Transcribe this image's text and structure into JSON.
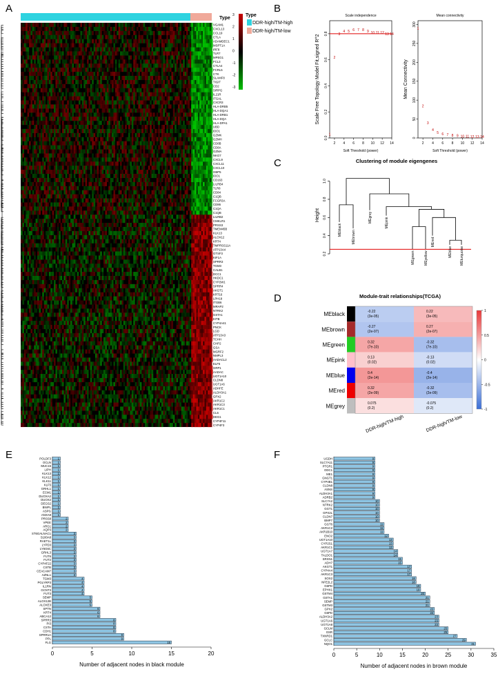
{
  "panels": {
    "a": "A",
    "b": "B",
    "c": "C",
    "d": "D",
    "e": "E",
    "f": "F"
  },
  "colors": {
    "type_high": "#2fd3e0",
    "type_low": "#f0a99a",
    "heat_red": "#c80000",
    "heat_green": "#00c000",
    "bar_fill": "#8ec5e3",
    "trait_pos": "#e8393a",
    "trait_neg": "#3b6fd6"
  },
  "chart_data": [
    {
      "type": "heatmap",
      "panel": "A",
      "legend_type_title": "Type",
      "legend_type_entries": [
        "DDR-high/TM-high",
        "DDR-high/TM-low"
      ],
      "scale_title": "Type",
      "scale_ticks": [
        "3",
        "2",
        "1",
        "0",
        "-1",
        "-2",
        "-3"
      ],
      "genes": [
        "VGAM1",
        "CXCL13",
        "CCL19",
        "CTLA",
        "ADAMDEC1",
        "MSPT1A",
        "IRF8",
        "TLR7",
        "MPEG1",
        "FCL3",
        "CTLA4",
        "FCRL5",
        "CTK",
        "SLAMF8",
        "TIGIT",
        "CD2",
        "SIRPG",
        "IL21R",
        "ITGAL",
        "CXCR3",
        "HLA-DRB5",
        "HLA-DQA1",
        "HLA-DRB1",
        "HLA-DQA",
        "HLA-DPA1",
        "UBD",
        "IDO1",
        "GZMK",
        "GZMH",
        "CD8B",
        "CD8A",
        "GZMA",
        "NKG7",
        "CXCL9",
        "CXCL11",
        "CXCL10",
        "GBP5",
        "IDO1",
        "CD163",
        "LILRB4",
        "TLR8",
        "CD84",
        "C1QB",
        "FCGR3A",
        "CD86",
        "C1QA",
        "C1QB",
        "LILRB2",
        "CMKLR1",
        "PRSS3",
        "TMEM45B",
        "KLK13",
        "ALOX12",
        "KRT4",
        "TMPRSS11A",
        "ATP13A4",
        "GTSF3",
        "KIF1A",
        "SPRR3",
        "TGM3",
        "CALB1",
        "DCC1",
        "HKDC1",
        "CYP2W1",
        "SPRR4",
        "AKGT1",
        "KRT16",
        "LPH18",
        "ITGB6",
        "MRAP2",
        "NTRK2",
        "GSTA1",
        "KITB",
        "CYP4A41",
        "PNCK",
        "LGD",
        "ATP13A3",
        "TCHH",
        "CHP2",
        "GSA",
        "MGRF2",
        "NMPL3",
        "AADACL2",
        "ELF5",
        "GRP1",
        "AADAC",
        "UGT1A10",
        "CLDN8",
        "UGT1A6",
        "ADHFE",
        "ALDH3A1",
        "GPX2",
        "AKR1C2",
        "AKR1C3",
        "AKR1C1",
        "CL6",
        "DEG1",
        "CYP4F11",
        "CYP4F3"
      ]
    },
    {
      "type": "scatter",
      "panel": "B",
      "title": "Scale independence",
      "xlabel": "Soft Threshold (power)",
      "ylabel": "Scale Free Topology Model Fit,signed R^2",
      "xlim": [
        1,
        14
      ],
      "ylim": [
        0,
        0.9
      ],
      "xticks": [
        "2",
        "4",
        "6",
        "8",
        "10",
        "12",
        "14"
      ],
      "yticks": [
        "0.0",
        "0.2",
        "0.4",
        "0.6",
        "0.8"
      ],
      "x": [
        1,
        2,
        3,
        4,
        5,
        6,
        7,
        8,
        9,
        10,
        11,
        12,
        13,
        14
      ],
      "y": [
        0.03,
        0.62,
        0.8,
        0.82,
        0.82,
        0.83,
        0.83,
        0.83,
        0.82,
        0.81,
        0.81,
        0.81,
        0.8,
        0.8
      ],
      "labels": [
        "1",
        "2",
        "3",
        "4",
        "5",
        "6",
        "7",
        "8",
        "9",
        "10",
        "11",
        "12",
        "13",
        "14"
      ],
      "threshold": 0.8
    },
    {
      "type": "scatter",
      "panel": "B",
      "title": "Mean connectivity",
      "xlabel": "Soft Threshold (power)",
      "ylabel": "Mean Connectivity",
      "xlim": [
        1,
        14
      ],
      "ylim": [
        0,
        310
      ],
      "xticks": [
        "2",
        "4",
        "6",
        "8",
        "10",
        "12",
        "14"
      ],
      "yticks": [
        "0",
        "50",
        "100",
        "150",
        "200",
        "250",
        "300"
      ],
      "x": [
        1,
        2,
        3,
        4,
        5,
        6,
        7,
        8,
        9,
        10,
        11,
        12,
        13,
        14
      ],
      "y": [
        290,
        85,
        40,
        22,
        15,
        11,
        9,
        7,
        6,
        5,
        5,
        4,
        4,
        4
      ],
      "labels": [
        "1",
        "2",
        "3",
        "4",
        "5",
        "6",
        "7",
        "8",
        "9",
        "10",
        "11",
        "12",
        "13",
        "14"
      ]
    },
    {
      "type": "dendrogram",
      "panel": "C",
      "title": "Clustering of module eigengenes",
      "ylabel": "Height",
      "yticks": [
        "0.2",
        "0.4",
        "0.6",
        "0.8",
        "1.0"
      ],
      "ylim": [
        0.2,
        1.05
      ],
      "leaves": [
        "MEblack",
        "MEbrown",
        "MEgrey",
        "MEpink",
        "MEgreen",
        "MEyellow",
        "MEred",
        "MEblue",
        "MEturquoise"
      ],
      "cut_height": 0.25
    },
    {
      "type": "heatmap",
      "panel": "D",
      "title": "Module-trait relationships(TCGA)",
      "rows": [
        "MEblack",
        "MEbrown",
        "MEgreen",
        "MEpink",
        "MEblue",
        "MEred",
        "MEgrey"
      ],
      "row_colors": [
        "#000000",
        "#a52a2a",
        "#22cc22",
        "#ffc0cb",
        "#0000ee",
        "#ee0000",
        "#bebebe"
      ],
      "columns": [
        "DDR-high/TM-high",
        "DDR-high/TM-low"
      ],
      "values": [
        [
          -0.22,
          0.22
        ],
        [
          -0.27,
          0.27
        ],
        [
          0.32,
          -0.32
        ],
        [
          0.13,
          -0.13
        ],
        [
          0.4,
          -0.4
        ],
        [
          0.32,
          -0.32
        ],
        [
          0.075,
          -0.075
        ]
      ],
      "cell_text": [
        [
          "-0.22",
          "(3e-05)",
          "0.22",
          "(3e-05)"
        ],
        [
          "-0.27",
          "(2e-07)",
          "0.27",
          "(2e-07)"
        ],
        [
          "0.32",
          "(7e-10)",
          "-0.32",
          "(7e-10)"
        ],
        [
          "0.13",
          "(0.02)",
          "-0.13",
          "(0.02)"
        ],
        [
          "0.4",
          "(2e-14)",
          "-0.4",
          "(2e-14)"
        ],
        [
          "0.32",
          "(2e-09)",
          "-0.32",
          "(2e-09)"
        ],
        [
          "0.075",
          "(0.2)",
          "-0.075",
          "(0.2)"
        ]
      ],
      "scale_ticks": [
        "1",
        "0.5",
        "0",
        "-0.5",
        "-1"
      ]
    },
    {
      "type": "bar",
      "panel": "E",
      "orientation": "horizontal",
      "xlabel": "Number of adjacent nodes in black module",
      "xlim": [
        0,
        20
      ],
      "xticks": [
        "0",
        "5",
        "10",
        "15",
        "20"
      ],
      "categories": [
        "POLDF3",
        "OCLN",
        "MUC15",
        "LIPH",
        "KLK13",
        "KLK12",
        "KLK11",
        "KLF5",
        "GRHL1",
        "ECM1",
        "DUOXA2",
        "DUOX2",
        "DEGS2",
        "BNIPL",
        "ASPG",
        "ANXA9",
        "PRSS8",
        "VPEE",
        "ARG1",
        "AQP3",
        "ST6GALNAC1",
        "S100A8",
        "RAET1L",
        "LYPD3",
        "LY6G6C",
        "GRHL3",
        "FUT6",
        "FUT2",
        "CYP4F22",
        "CSTB",
        "CEACAM7",
        "AZNL1",
        "TGM3",
        "PGLYRP3",
        "IL1RN",
        "GCNT3",
        "FUT3",
        "SEMP",
        "ALOX12B",
        "ALOXE3",
        "SPTN",
        "KRT4",
        "ABCA12",
        "SPRR3",
        "PI3",
        "CSTA",
        "CDH1",
        "SPRR1A",
        "PPL",
        "FLG"
      ],
      "values": [
        1,
        1,
        1,
        1,
        1,
        1,
        1,
        1,
        1,
        1,
        1,
        1,
        1,
        1,
        1,
        1,
        2,
        2,
        2,
        2,
        3,
        3,
        3,
        3,
        3,
        3,
        3,
        3,
        3,
        3,
        3,
        3,
        4,
        4,
        4,
        4,
        4,
        5,
        5,
        5,
        6,
        6,
        6,
        8,
        8,
        8,
        8,
        9,
        9,
        15
      ],
      "value_labels": [
        "1",
        "1",
        "1",
        "1",
        "1",
        "1",
        "1",
        "1",
        "1",
        "1",
        "1",
        "1",
        "1",
        "1",
        "1",
        "1",
        "2",
        "2",
        "2",
        "2",
        "3",
        "3",
        "3",
        "3",
        "3",
        "3",
        "3",
        "3",
        "3",
        "3",
        "3",
        "3",
        "4",
        "4",
        "4",
        "4",
        "4",
        "5",
        "5",
        "5",
        "6",
        "6",
        "6",
        "8",
        "8",
        "8",
        "8",
        "9",
        "9",
        "15"
      ]
    },
    {
      "type": "bar",
      "panel": "F",
      "orientation": "horizontal",
      "xlabel": "Number of adjacent nodes in brown module",
      "xlim": [
        0,
        35
      ],
      "xticks": [
        "0",
        "5",
        "10",
        "15",
        "20",
        "25",
        "30",
        "35"
      ],
      "categories": [
        "UGDH",
        "SLC7A11",
        "PTGR1",
        "ODC1",
        "ME1",
        "GNGT1",
        "CYP4B1",
        "CLDN8",
        "ASNS",
        "ALDH3A1",
        "ADRB2",
        "SLC7A2",
        "NTRK2",
        "GGT1",
        "GPX2L",
        "CLDN7",
        "BMP7",
        "GGT6",
        "AKR1C2",
        "AKR1B10",
        "ENO2",
        "UGT1A10",
        "CYP2S1",
        "AKR1C1",
        "UGT1A7",
        "TALDO1",
        "SRXN1",
        "ADH7",
        "AKGT1",
        "CYP4A4",
        "AKR1C3",
        "SOX2",
        "NFE2L2",
        "G6PD",
        "EPHX1",
        "GSTM4",
        "GSTA1",
        "SEMP",
        "GSTM3",
        "GPX2",
        "G6PD",
        "ALDH3A2",
        "UGT1A6",
        "UGT1A8",
        "GCLM",
        "GSR",
        "TXNRD1",
        "GCLC",
        "NQO1"
      ],
      "values": [
        9,
        9,
        9,
        9,
        9,
        9,
        9,
        9,
        9,
        9,
        9,
        10,
        10,
        10,
        10,
        10,
        10,
        11,
        11,
        11,
        12,
        13,
        13,
        13,
        14,
        14,
        15,
        15,
        17,
        17,
        17,
        18,
        18,
        19,
        19,
        20,
        21,
        21,
        21,
        22,
        22,
        23,
        23,
        23,
        25,
        25,
        27,
        29,
        31
      ],
      "value_labels": [
        "9",
        "9",
        "9",
        "9",
        "9",
        "9",
        "9",
        "9",
        "9",
        "9",
        "9",
        "10",
        "10",
        "10",
        "10",
        "10",
        "10",
        "11",
        "11",
        "11",
        "12",
        "13",
        "13",
        "13",
        "14",
        "14",
        "15",
        "15",
        "17",
        "17",
        "17",
        "18",
        "18",
        "19",
        "19",
        "20",
        "21",
        "21",
        "21",
        "22",
        "22",
        "23",
        "23",
        "23",
        "25",
        "25",
        "27",
        "29",
        "31"
      ]
    }
  ]
}
